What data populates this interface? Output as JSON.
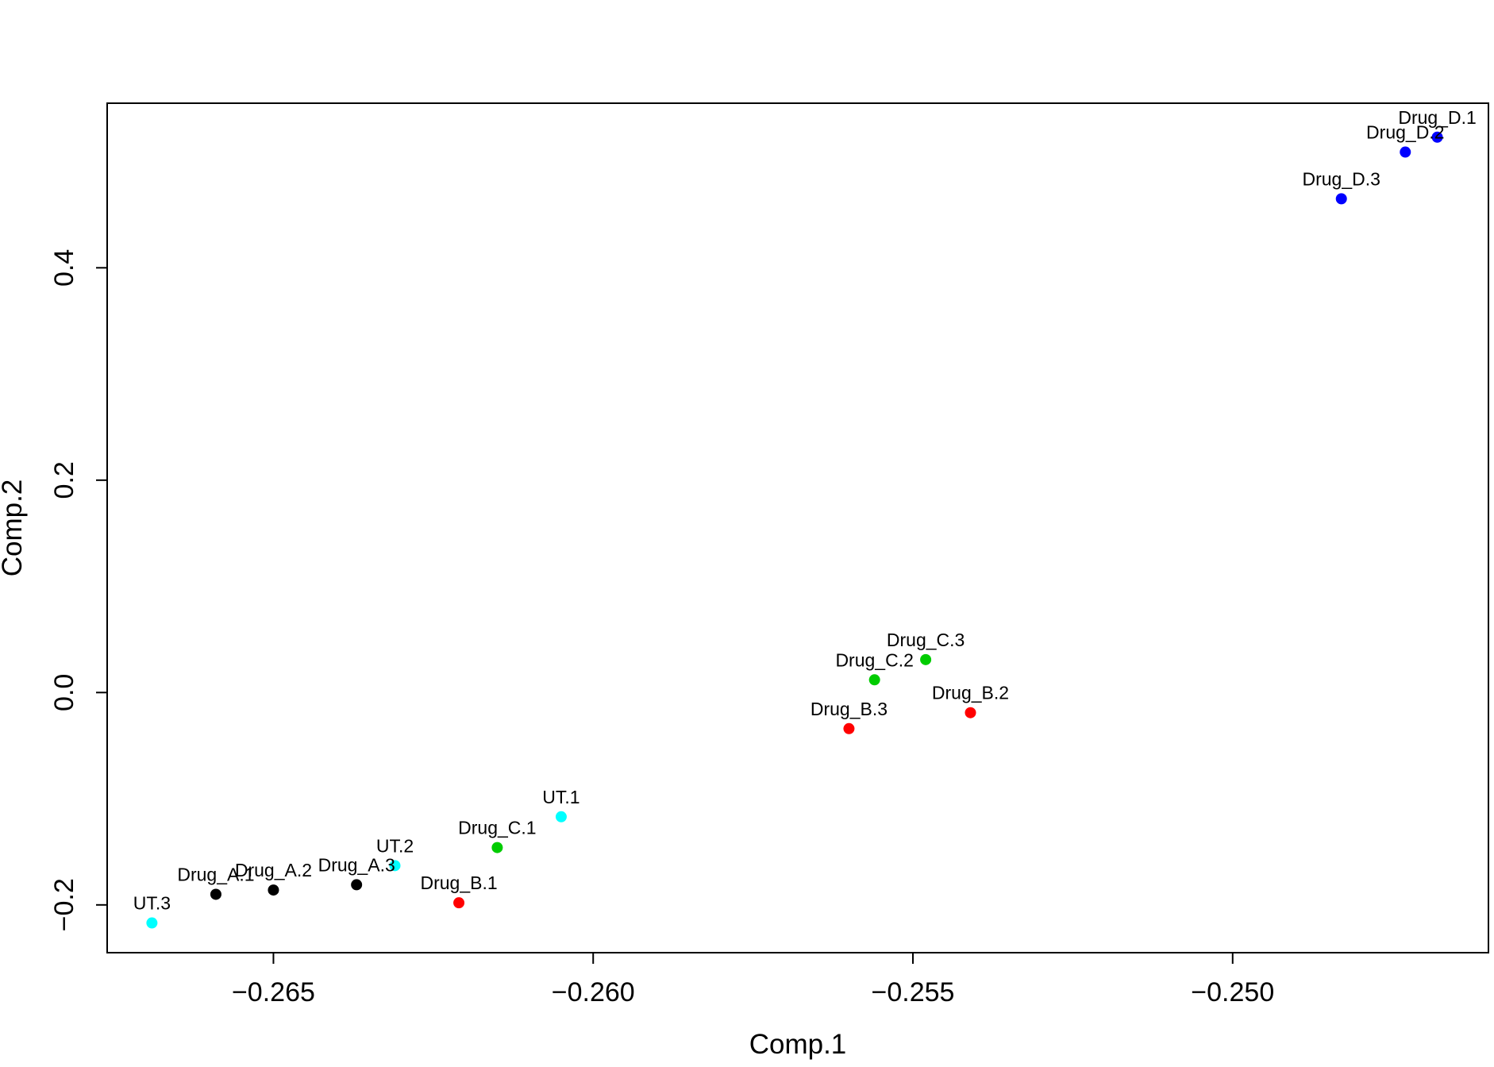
{
  "chart_data": {
    "type": "scatter",
    "title": "",
    "xlabel": "Comp.1",
    "ylabel": "Comp.2",
    "xlim": [
      -0.2676,
      -0.246
    ],
    "ylim": [
      -0.245,
      0.555
    ],
    "xticks": [
      {
        "value": -0.265,
        "label": "−0.265"
      },
      {
        "value": -0.26,
        "label": "−0.260"
      },
      {
        "value": -0.255,
        "label": "−0.255"
      },
      {
        "value": -0.25,
        "label": "−0.250"
      }
    ],
    "yticks": [
      {
        "value": -0.2,
        "label": "−0.2"
      },
      {
        "value": 0.0,
        "label": "0.0"
      },
      {
        "value": 0.2,
        "label": "0.2"
      },
      {
        "value": 0.4,
        "label": "0.4"
      }
    ],
    "grid": false,
    "legend": "none",
    "points": [
      {
        "label": "UT.3",
        "x": -0.2669,
        "y": -0.217,
        "color": "#00ffff"
      },
      {
        "label": "Drug_A.1",
        "x": -0.2659,
        "y": -0.19,
        "color": "#000000"
      },
      {
        "label": "Drug_A.2",
        "x": -0.265,
        "y": -0.186,
        "color": "#000000"
      },
      {
        "label": "Drug_A.3",
        "x": -0.2637,
        "y": -0.181,
        "color": "#000000"
      },
      {
        "label": "UT.2",
        "x": -0.2631,
        "y": -0.163,
        "color": "#00ffff"
      },
      {
        "label": "Drug_B.1",
        "x": -0.2621,
        "y": -0.198,
        "color": "#ff0000"
      },
      {
        "label": "Drug_C.1",
        "x": -0.2615,
        "y": -0.146,
        "color": "#00cc00"
      },
      {
        "label": "UT.1",
        "x": -0.2605,
        "y": -0.117,
        "color": "#00ffff"
      },
      {
        "label": "Drug_B.3",
        "x": -0.256,
        "y": -0.034,
        "color": "#ff0000"
      },
      {
        "label": "Drug_C.2",
        "x": -0.2556,
        "y": 0.012,
        "color": "#00cc00"
      },
      {
        "label": "Drug_C.3",
        "x": -0.2548,
        "y": 0.031,
        "color": "#00cc00"
      },
      {
        "label": "Drug_B.2",
        "x": -0.2541,
        "y": -0.019,
        "color": "#ff0000"
      },
      {
        "label": "Drug_D.3",
        "x": -0.2483,
        "y": 0.465,
        "color": "#0000ff"
      },
      {
        "label": "Drug_D.2",
        "x": -0.2473,
        "y": 0.509,
        "color": "#0000ff"
      },
      {
        "label": "Drug_D.1",
        "x": -0.2468,
        "y": 0.523,
        "color": "#0000ff"
      }
    ]
  }
}
